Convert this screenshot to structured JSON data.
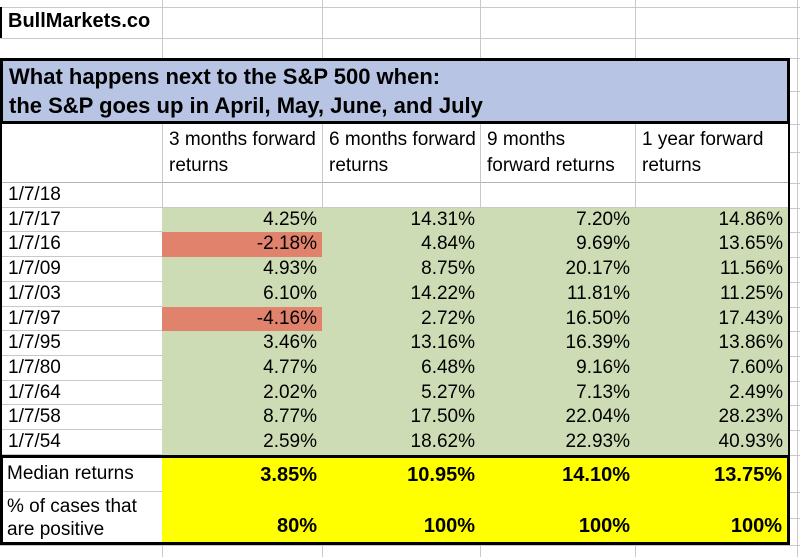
{
  "brand": {
    "name": "BullMarkets.co"
  },
  "title": {
    "line1": "What happens next to the S&P 500 when:",
    "line2": "the S&P goes up in April, May, June, and July"
  },
  "table": {
    "columns": [
      "3 months forward returns",
      "6 months forward returns",
      "9 months forward returns",
      "1 year forward returns"
    ],
    "rows": [
      {
        "date": "1/7/18",
        "values": [
          "",
          "",
          "",
          ""
        ]
      },
      {
        "date": "1/7/17",
        "values": [
          "4.25%",
          "14.31%",
          "7.20%",
          "14.86%"
        ]
      },
      {
        "date": "1/7/16",
        "values": [
          "-2.18%",
          "4.84%",
          "9.69%",
          "13.65%"
        ]
      },
      {
        "date": "1/7/09",
        "values": [
          "4.93%",
          "8.75%",
          "20.17%",
          "11.56%"
        ]
      },
      {
        "date": "1/7/03",
        "values": [
          "6.10%",
          "14.22%",
          "11.81%",
          "11.25%"
        ]
      },
      {
        "date": "1/7/97",
        "values": [
          "-4.16%",
          "2.72%",
          "16.50%",
          "17.43%"
        ]
      },
      {
        "date": "1/7/95",
        "values": [
          "3.46%",
          "13.16%",
          "16.39%",
          "13.86%"
        ]
      },
      {
        "date": "1/7/80",
        "values": [
          "4.77%",
          "6.48%",
          "9.16%",
          "7.60%"
        ]
      },
      {
        "date": "1/7/64",
        "values": [
          "2.02%",
          "5.27%",
          "7.13%",
          "2.49%"
        ]
      },
      {
        "date": "1/7/58",
        "values": [
          "8.77%",
          "17.50%",
          "22.04%",
          "28.23%"
        ]
      },
      {
        "date": "1/7/54",
        "values": [
          "2.59%",
          "18.62%",
          "22.93%",
          "40.93%"
        ]
      }
    ],
    "summary": [
      {
        "label": "Median returns",
        "values": [
          "3.85%",
          "10.95%",
          "14.10%",
          "13.75%"
        ]
      },
      {
        "label": "% of cases that are positive",
        "values": [
          "80%",
          "100%",
          "100%",
          "100%"
        ]
      }
    ]
  },
  "colors": {
    "title_bg": "#b8c4e4",
    "positive_bg": "#cddcb4",
    "negative_bg": "#e0826c",
    "summary_bg": "#ffff00",
    "gridline": "#c9c9c9"
  }
}
